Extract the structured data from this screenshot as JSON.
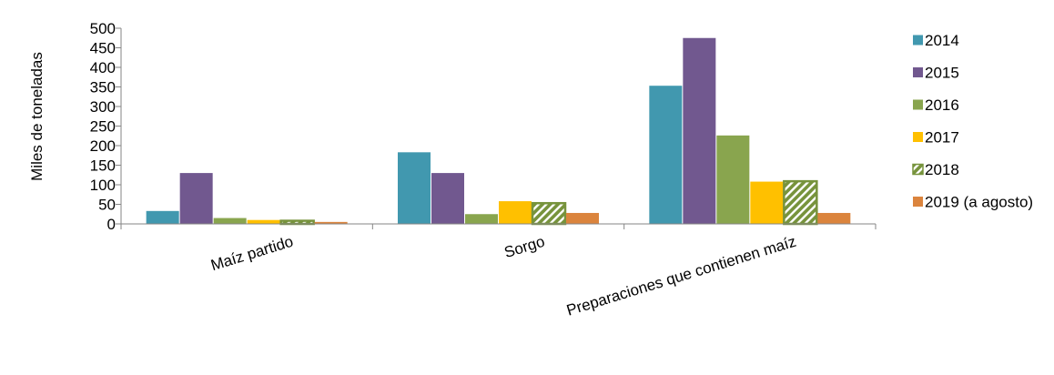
{
  "chart_data": {
    "type": "bar",
    "ylabel": "Miles de  toneladas",
    "ylim": [
      0,
      500
    ],
    "yticks": [
      0,
      50,
      100,
      150,
      200,
      250,
      300,
      350,
      400,
      450,
      500
    ],
    "categories": [
      "Maíz partido",
      "Sorgo",
      "Preparaciones que contienen maíz"
    ],
    "legend_position": "right",
    "series": [
      {
        "name": "2014",
        "color": "#4198AF",
        "pattern": "solid",
        "values": [
          33,
          183,
          353
        ]
      },
      {
        "name": "2015",
        "color": "#71588F",
        "pattern": "solid",
        "values": [
          130,
          130,
          475
        ]
      },
      {
        "name": "2016",
        "color": "#89A54E",
        "pattern": "solid",
        "values": [
          15,
          25,
          226
        ]
      },
      {
        "name": "2017",
        "color": "#FFC000",
        "pattern": "solid",
        "values": [
          10,
          58,
          108
        ]
      },
      {
        "name": "2018",
        "color": "#77933C",
        "pattern": "hatched",
        "values": [
          8,
          53,
          109
        ]
      },
      {
        "name": "2019 (a agosto)",
        "color": "#DB843D",
        "pattern": "solid",
        "values": [
          5,
          28,
          28
        ]
      }
    ]
  }
}
